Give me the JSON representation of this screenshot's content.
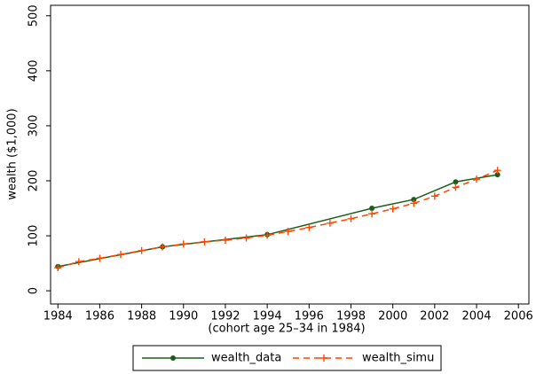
{
  "chart_data": {
    "type": "line",
    "y_label": "wealth ($1,000)",
    "x_label": "(cohort age 25–34 in 1984)",
    "xlim": [
      1983.65,
      2006.5
    ],
    "xticks": [
      1984,
      1986,
      1988,
      1990,
      1992,
      1994,
      1996,
      1998,
      2000,
      2002,
      2004,
      2006
    ],
    "ylim": [
      -24,
      519
    ],
    "yticks": [
      0,
      100,
      200,
      300,
      400,
      500
    ],
    "grid": false,
    "legend": "bottom",
    "series": [
      {
        "name": "wealth_data",
        "color": "#1a5e1a",
        "marker": "circle",
        "dash": false,
        "x": [
          1984,
          1989,
          1994,
          1999,
          2001,
          2003,
          2005
        ],
        "values": [
          44,
          80,
          102,
          150,
          166,
          198,
          211
        ]
      },
      {
        "name": "wealth_simu",
        "color": "#ff4500",
        "marker": "plus",
        "dash": true,
        "x": [
          1984,
          1985,
          1986,
          1987,
          1988,
          1989,
          1990,
          1991,
          1992,
          1993,
          1994,
          1995,
          1996,
          1997,
          1998,
          1999,
          2000,
          2001,
          2002,
          2003,
          2004,
          2005
        ],
        "values": [
          42,
          53,
          59,
          66,
          73,
          80,
          85,
          89,
          92,
          96,
          101,
          108,
          115,
          123,
          131,
          140,
          149,
          159,
          172,
          188,
          203,
          219
        ]
      }
    ]
  }
}
